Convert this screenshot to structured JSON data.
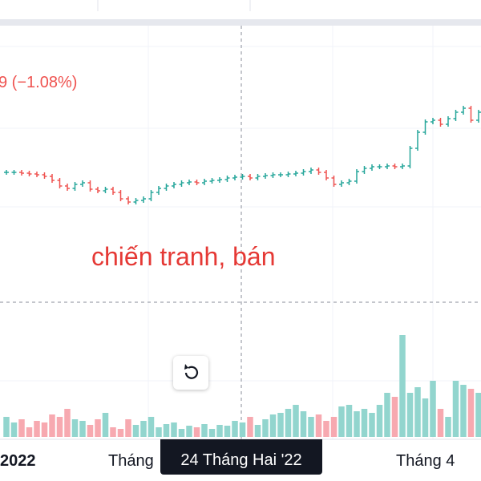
{
  "header": {
    "change": "9 (−1.08%)"
  },
  "annotation": "chiến tranh, bán",
  "price": {
    "closes": [
      170,
      170,
      169,
      168,
      167,
      165,
      160,
      153,
      150,
      155,
      157,
      149,
      147,
      149,
      145,
      137,
      133,
      135,
      137,
      145,
      150,
      153,
      155,
      157,
      158,
      157,
      159,
      160,
      161,
      163,
      164,
      165,
      163,
      165,
      166,
      167,
      167,
      168,
      169,
      171,
      173,
      170,
      163,
      155,
      157,
      159,
      171,
      175,
      177,
      177,
      178,
      177,
      178,
      200,
      220,
      233,
      235,
      230,
      237,
      245,
      250,
      235,
      245
    ],
    "up_color": "#26a69a",
    "down_color": "#ef5350"
  },
  "volume": {
    "values": [
      25,
      18,
      22,
      12,
      20,
      18,
      28,
      25,
      35,
      22,
      20,
      15,
      22,
      30,
      12,
      10,
      22,
      15,
      20,
      25,
      12,
      16,
      18,
      10,
      14,
      12,
      16,
      10,
      15,
      14,
      20,
      18,
      25,
      15,
      22,
      28,
      30,
      35,
      40,
      32,
      25,
      28,
      20,
      25,
      38,
      40,
      32,
      35,
      30,
      40,
      55,
      50,
      127,
      55,
      62,
      48,
      70,
      35,
      25,
      70,
      65,
      60,
      55
    ],
    "up_color": "#92d5ce",
    "down_color": "#f7a9b0"
  },
  "time_axis": {
    "labels": [
      "2022",
      "Tháng",
      "Tháng 4"
    ],
    "crosshair_label": "24 Tháng Hai '22"
  }
}
